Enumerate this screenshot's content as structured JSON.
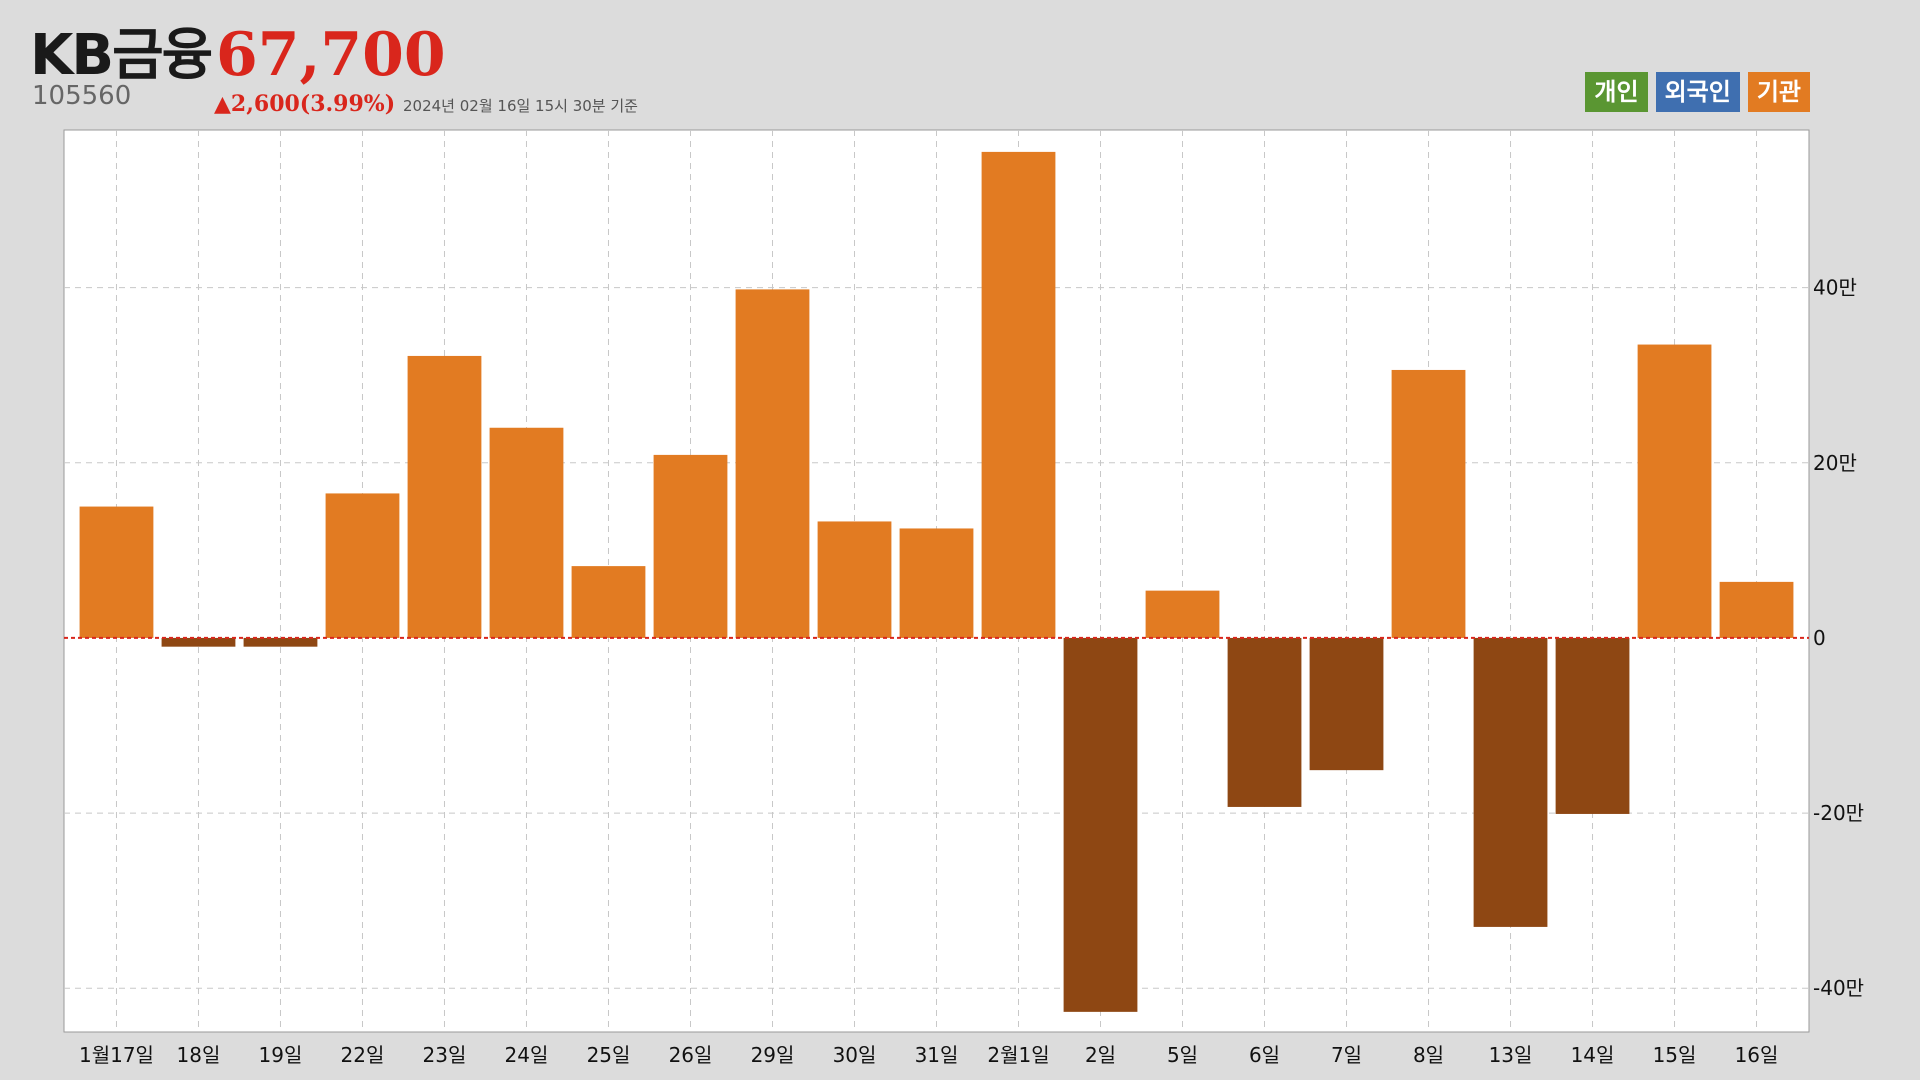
{
  "header": {
    "name": "KB금융",
    "price": "67,700",
    "code": "105560",
    "change": "▲2,600(3.99%)",
    "timestamp": "2024년 02월 16일 15시 30분 기준"
  },
  "legend": [
    {
      "label": "개인",
      "color": "#5a9632"
    },
    {
      "label": "외국인",
      "color": "#3f6fb0"
    },
    {
      "label": "기관",
      "color": "#e27b22"
    }
  ],
  "colors": {
    "positive": "#e27b22",
    "negative": "#8e4713",
    "zero_line": "#d9261c",
    "grid": "#c8c8c8"
  },
  "chart_data": {
    "type": "bar",
    "series_name": "기관",
    "categories": [
      "1월17일",
      "18일",
      "19일",
      "22일",
      "23일",
      "24일",
      "25일",
      "26일",
      "29일",
      "30일",
      "31일",
      "2월1일",
      "2일",
      "5일",
      "6일",
      "7일",
      "8일",
      "13일",
      "14일",
      "15일",
      "16일"
    ],
    "values": [
      150000,
      -10000,
      -10000,
      165000,
      322000,
      240000,
      82000,
      209000,
      398000,
      133000,
      125000,
      555000,
      -427000,
      54000,
      -193000,
      -151000,
      306000,
      -330000,
      -201000,
      335000,
      64000
    ],
    "yticks": [
      -400000,
      -200000,
      0,
      200000,
      400000
    ],
    "ytick_labels": [
      "-40만",
      "-20만",
      "0",
      "20만",
      "40만"
    ],
    "ylim": [
      -450000,
      580000
    ],
    "grid": true,
    "legend_position": "top-right"
  }
}
